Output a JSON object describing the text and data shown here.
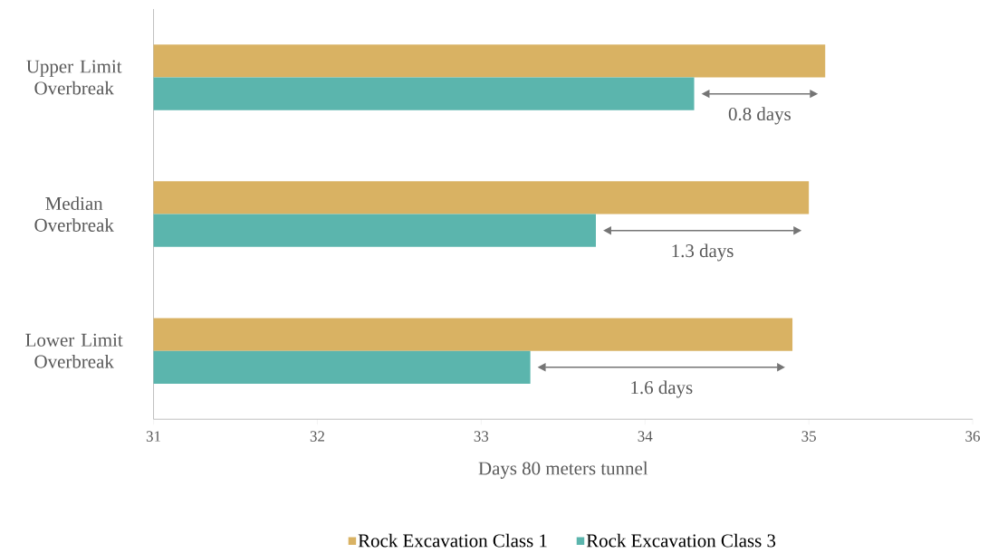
{
  "chart_data": {
    "type": "bar",
    "orientation": "horizontal",
    "xlabel": "Days 80 meters tunnel",
    "categories": [
      "Upper Limit Overbreak",
      "Median Overbreak",
      "Lower Limit Overbreak"
    ],
    "series": [
      {
        "name": "Rock Excavation Class 1",
        "color": "#d9b263",
        "values": [
          35.1,
          35.0,
          34.9
        ]
      },
      {
        "name": "Rock Excavation Class 3",
        "color": "#5bb5ad",
        "values": [
          34.3,
          33.7,
          33.3
        ]
      }
    ],
    "xlim": [
      31,
      36
    ],
    "xticks": [
      31,
      32,
      33,
      34,
      35,
      36
    ],
    "legend": "bottom",
    "annotations": [
      {
        "text": "0.8 days",
        "x": 34.7,
        "y": "Upper Limit Overbreak"
      },
      {
        "text": "1.3 days",
        "x": 34.35,
        "y": "Median Overbreak"
      },
      {
        "text": "1.6 days",
        "x": 34.1,
        "y": "Lower Limit Overbreak"
      }
    ]
  }
}
